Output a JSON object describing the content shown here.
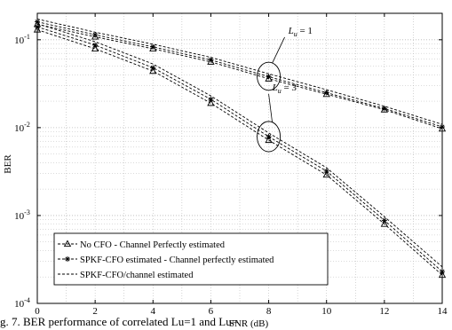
{
  "chart_data": {
    "type": "line",
    "xlabel": "SNR (dB)",
    "ylabel": "BER",
    "xlim": [
      0,
      14
    ],
    "ylim": [
      0.0001,
      0.2
    ],
    "yscale": "log",
    "grid": true,
    "x_ticks": [
      "0",
      "2",
      "4",
      "6",
      "8",
      "10",
      "12",
      "14"
    ],
    "y_ticks": [
      {
        "base": "10",
        "exp": "-4",
        "value": 0.0001
      },
      {
        "base": "10",
        "exp": "-3",
        "value": 0.001
      },
      {
        "base": "10",
        "exp": "-2",
        "value": 0.01
      },
      {
        "base": "10",
        "exp": "-1",
        "value": 0.1
      }
    ],
    "legend_position": "bottom-left",
    "legend": [
      {
        "label": "No CFO - Channel Perfectly estimated",
        "marker": "triangle"
      },
      {
        "label": "SPKF-CFO estimated - Channel perfectly estimated",
        "marker": "star"
      },
      {
        "label": "SPKF-CFO/channel estimated",
        "marker": "none"
      }
    ],
    "x": [
      0,
      2,
      4,
      6,
      8,
      10,
      12,
      14
    ],
    "series": [
      {
        "group": "Lu=1",
        "marker": "triangle",
        "values": [
          0.15,
          0.108,
          0.079,
          0.056,
          0.036,
          0.024,
          0.016,
          0.0097
        ]
      },
      {
        "group": "Lu=1",
        "marker": "star",
        "values": [
          0.16,
          0.114,
          0.083,
          0.059,
          0.038,
          0.025,
          0.0165,
          0.0102
        ]
      },
      {
        "group": "Lu=1",
        "marker": "none",
        "values": [
          0.172,
          0.122,
          0.089,
          0.063,
          0.041,
          0.027,
          0.0175,
          0.0109
        ]
      },
      {
        "group": "Lu=3",
        "marker": "triangle",
        "values": [
          0.13,
          0.079,
          0.044,
          0.019,
          0.0072,
          0.0029,
          0.0008,
          0.00021
        ]
      },
      {
        "group": "Lu=3",
        "marker": "star",
        "values": [
          0.14,
          0.087,
          0.048,
          0.021,
          0.0079,
          0.0032,
          0.00088,
          0.00023
        ]
      },
      {
        "group": "Lu=3",
        "marker": "none",
        "values": [
          0.152,
          0.095,
          0.053,
          0.023,
          0.0087,
          0.0035,
          0.00097,
          0.00026
        ]
      }
    ],
    "annotations": [
      {
        "text_base": "L",
        "text_sub": "u",
        "text_rest": " = 1",
        "group": "Lu=1"
      },
      {
        "text_base": "L",
        "text_sub": "u",
        "text_rest": " = 3",
        "group": "Lu=3"
      }
    ]
  },
  "caption": "g. 7. BER performance of correlated Lu=1 and Lu=",
  "colors": {
    "line": "#000000",
    "grid": "#b8b8b8",
    "background": "#ffffff"
  }
}
